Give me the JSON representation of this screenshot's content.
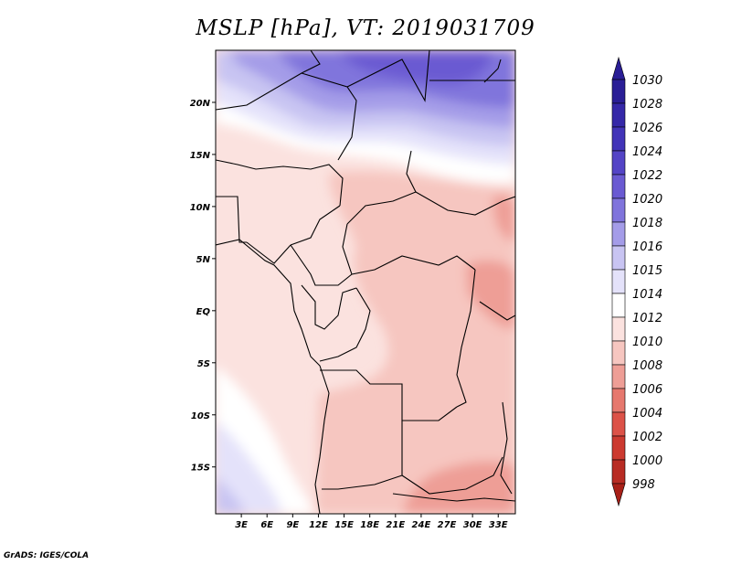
{
  "title": "MSLP [hPa], VT: 2019031709",
  "credit": "GrADS: IGES/COLA",
  "map": {
    "lon_range": [
      0,
      35
    ],
    "lat_range": [
      -19.5,
      25
    ],
    "lat_ticks": [
      {
        "lat": 20,
        "label": "20N"
      },
      {
        "lat": 15,
        "label": "15N"
      },
      {
        "lat": 10,
        "label": "10N"
      },
      {
        "lat": 5,
        "label": "5N"
      },
      {
        "lat": 0,
        "label": "EQ"
      },
      {
        "lat": -5,
        "label": "5S"
      },
      {
        "lat": -10,
        "label": "10S"
      },
      {
        "lat": -15,
        "label": "15S"
      }
    ],
    "lon_ticks": [
      {
        "lon": 3,
        "label": "3E"
      },
      {
        "lon": 6,
        "label": "6E"
      },
      {
        "lon": 9,
        "label": "9E"
      },
      {
        "lon": 12,
        "label": "12E"
      },
      {
        "lon": 15,
        "label": "15E"
      },
      {
        "lon": 18,
        "label": "18E"
      },
      {
        "lon": 21,
        "label": "21E"
      },
      {
        "lon": 24,
        "label": "24E"
      },
      {
        "lon": 27,
        "label": "27E"
      },
      {
        "lon": 30,
        "label": "30E"
      },
      {
        "lon": 33,
        "label": "33E"
      }
    ]
  },
  "colorbar": {
    "levels": [
      {
        "label": "1030",
        "color": "#2a1e96"
      },
      {
        "label": "1028",
        "color": "#3528a8"
      },
      {
        "label": "1026",
        "color": "#4234b8"
      },
      {
        "label": "1024",
        "color": "#5444c6"
      },
      {
        "label": "1022",
        "color": "#6a5ad2"
      },
      {
        "label": "1020",
        "color": "#8074dc"
      },
      {
        "label": "1018",
        "color": "#a49ce8"
      },
      {
        "label": "1016",
        "color": "#c8c4f2"
      },
      {
        "label": "1015",
        "color": "#e4e2fa"
      },
      {
        "label": "1014",
        "color": "#ffffff"
      },
      {
        "label": "1012",
        "color": "#fbe2df"
      },
      {
        "label": "1010",
        "color": "#f6c6c0"
      },
      {
        "label": "1008",
        "color": "#ee9e96"
      },
      {
        "label": "1006",
        "color": "#e6786e"
      },
      {
        "label": "1004",
        "color": "#dc5248"
      },
      {
        "label": "1002",
        "color": "#cc3a30"
      },
      {
        "label": "1000",
        "color": "#b82c24"
      },
      {
        "label": "998",
        "color": "#a82018"
      }
    ]
  }
}
